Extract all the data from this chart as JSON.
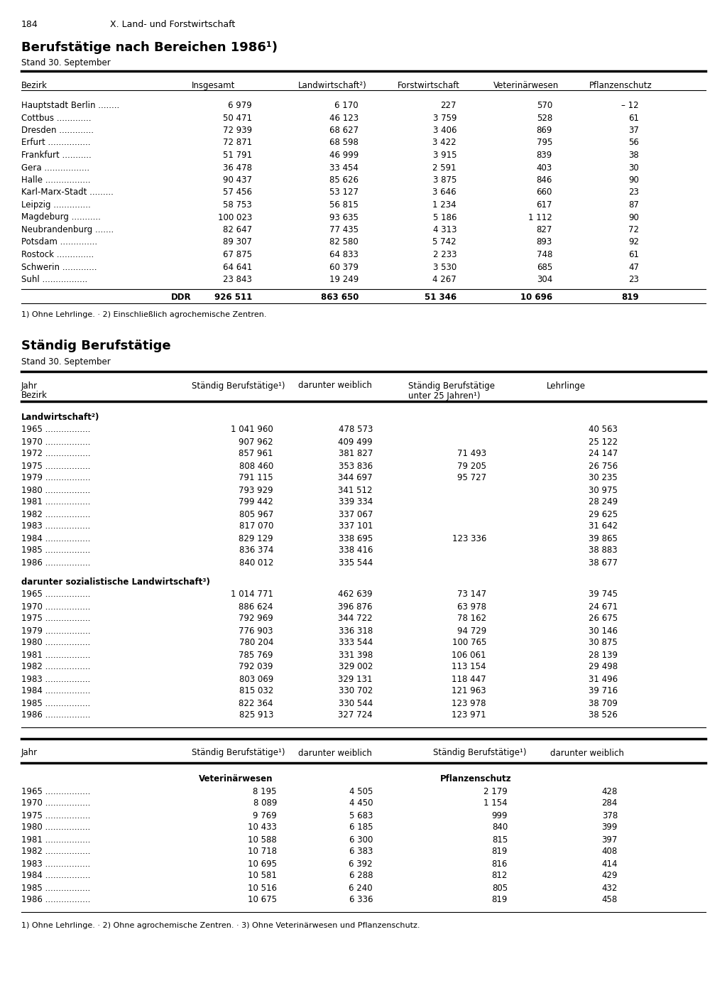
{
  "page_num": "184",
  "chapter": "X. Land- und Forstwirtschaft",
  "section1_title": "Berufstätige nach Bereichen 1986¹)",
  "section1_subtitle": "Stand 30. September",
  "section1_headers": [
    "Bezirk",
    "Insgesamt",
    "Landwirtschaft²)",
    "Forstwirtschaft",
    "Veterinärwesen",
    "Pflanzenschutz"
  ],
  "section1_rows": [
    [
      "Hauptstadt Berlin         ",
      "6 979",
      "6 170",
      "227",
      "570",
      "– 12"
    ],
    [
      "Cottbus              ",
      "50 471",
      "46 123",
      "3 759",
      "528",
      "61"
    ],
    [
      "Dresden              ",
      "72 939",
      "68 627",
      "3 406",
      "869",
      "37"
    ],
    [
      "Erfurt                ",
      "72 871",
      "68 598",
      "3 422",
      "795",
      "56"
    ],
    [
      "Frankfurt            ",
      "51 791",
      "46 999",
      "3 915",
      "839",
      "38"
    ],
    [
      "Gera                ",
      "36 478",
      "33 454",
      "2 591",
      "403",
      "30"
    ],
    [
      "Halle                ",
      "90 437",
      "85 626",
      "3 875",
      "846",
      "90"
    ],
    [
      "Karl-Marx-Stadt          ",
      "57 456",
      "53 127",
      "3 646",
      "660",
      "23"
    ],
    [
      "Leipzig              ",
      "58 753",
      "56 815",
      "1 234",
      "617",
      "87"
    ],
    [
      "Magdeburg            ",
      "100 023",
      "93 635",
      "5 186",
      "1 112",
      "90"
    ],
    [
      "Neubrandenburg         ",
      "82 647",
      "77 435",
      "4 313",
      "827",
      "72"
    ],
    [
      "Potsdam              ",
      "89 307",
      "82 580",
      "5 742",
      "893",
      "92"
    ],
    [
      "Rostock              ",
      "67 875",
      "64 833",
      "2 233",
      "748",
      "61"
    ],
    [
      "Schwerin             ",
      "64 641",
      "60 379",
      "3 530",
      "685",
      "47"
    ],
    [
      "Suhl                ",
      "23 843",
      "19 249",
      "4 267",
      "304",
      "23"
    ]
  ],
  "section1_row_labels": [
    "Hauptstadt Berlin ........",
    "Cottbus .............",
    "Dresden .............",
    "Erfurt ................",
    "Frankfurt ...........",
    "Gera .................",
    "Halle .................",
    "Karl-Marx-Stadt .........",
    "Leipzig ..............",
    "Magdeburg ...........",
    "Neubrandenburg .......",
    "Potsdam ..............",
    "Rostock ..............",
    "Schwerin .............",
    "Suhl ................."
  ],
  "section1_ddr": [
    "DDR",
    "926 511",
    "863 650",
    "51 346",
    "10 696",
    "819"
  ],
  "section1_footnotes": "1) Ohne Lehrlinge. · 2) Einschließlich agrochemische Zentren.",
  "section2_title": "Ständig Berufstätige",
  "section2_subtitle": "Stand 30. September",
  "section2_col1": "Jahr\nBezirk",
  "section2_col2": "Ständig Berufstätige¹)",
  "section2_col3": "darunter weiblich",
  "section2_col4": "Ständig Berufstätige\nunter 25 Jahren¹)",
  "section2_col5": "Lehrlinge",
  "subsection2a_title": "Landwirtschaft²)",
  "subsection2a_rows": [
    [
      "1965",
      "1 041 960",
      "478 573",
      "",
      "40 563"
    ],
    [
      "1970",
      "907 962",
      "409 499",
      "",
      "25 122"
    ],
    [
      "1972",
      "857 961",
      "381 827",
      "71 493",
      "24 147"
    ],
    [
      "1975",
      "808 460",
      "353 836",
      "79 205",
      "26 756"
    ],
    [
      "1979",
      "791 115",
      "344 697",
      "95 727",
      "30 235"
    ],
    [
      "1980",
      "793 929",
      "341 512",
      "",
      "30 975"
    ],
    [
      "1981",
      "799 442",
      "339 334",
      "",
      "28 249"
    ],
    [
      "1982",
      "805 967",
      "337 067",
      "",
      "29 625"
    ],
    [
      "1983",
      "817 070",
      "337 101",
      "",
      "31 642"
    ],
    [
      "1984",
      "829 129",
      "338 695",
      "123 336",
      "39 865"
    ],
    [
      "1985",
      "836 374",
      "338 416",
      "",
      "38 883"
    ],
    [
      "1986",
      "840 012",
      "335 544",
      "",
      "38 677"
    ]
  ],
  "subsection2b_title": "darunter sozialistische Landwirtschaft³)",
  "subsection2b_rows": [
    [
      "1965",
      "1 014 771",
      "462 639",
      "73 147",
      "39 745"
    ],
    [
      "1970",
      "886 624",
      "396 876",
      "63 978",
      "24 671"
    ],
    [
      "1975",
      "792 969",
      "344 722",
      "78 162",
      "26 675"
    ],
    [
      "1979",
      "776 903",
      "336 318",
      "94 729",
      "30 146"
    ],
    [
      "1980",
      "780 204",
      "333 544",
      "100 765",
      "30 875"
    ],
    [
      "1981",
      "785 769",
      "331 398",
      "106 061",
      "28 139"
    ],
    [
      "1982",
      "792 039",
      "329 002",
      "113 154",
      "29 498"
    ],
    [
      "1983",
      "803 069",
      "329 131",
      "118 447",
      "31 496"
    ],
    [
      "1984",
      "815 032",
      "330 702",
      "121 963",
      "39 716"
    ],
    [
      "1985",
      "822 364",
      "330 544",
      "123 978",
      "38 709"
    ],
    [
      "1986",
      "825 913",
      "327 724",
      "123 971",
      "38 526"
    ]
  ],
  "section3_col1": "Jahr",
  "section3_col2": "Ständig Berufstätige¹)",
  "section3_col3": "darunter weiblich",
  "section3_col4": "Ständig Berufstätige¹)",
  "section3_col5": "darunter weiblich",
  "subsection3a_title": "Veterinärwesen",
  "subsection3b_title": "Pflanzenschutz",
  "section3_rows": [
    [
      "1965",
      "8 195",
      "4 505",
      "2 179",
      "428"
    ],
    [
      "1970",
      "8 089",
      "4 450",
      "1 154",
      "284"
    ],
    [
      "1975",
      "9 769",
      "5 683",
      "999",
      "378"
    ],
    [
      "1980",
      "10 433",
      "6 185",
      "840",
      "399"
    ],
    [
      "1981",
      "10 588",
      "6 300",
      "815",
      "397"
    ],
    [
      "1982",
      "10 718",
      "6 383",
      "819",
      "408"
    ],
    [
      "1983",
      "10 695",
      "6 392",
      "816",
      "414"
    ],
    [
      "1984",
      "10 581",
      "6 288",
      "812",
      "429"
    ],
    [
      "1985",
      "10 516",
      "6 240",
      "805",
      "432"
    ],
    [
      "1986",
      "10 675",
      "6 336",
      "819",
      "458"
    ]
  ],
  "section3_footnotes": "1) Ohne Lehrlinge. · 2) Ohne agrochemische Zentren. · 3) Ohne Veterinärwesen und Pflanzenschutz."
}
